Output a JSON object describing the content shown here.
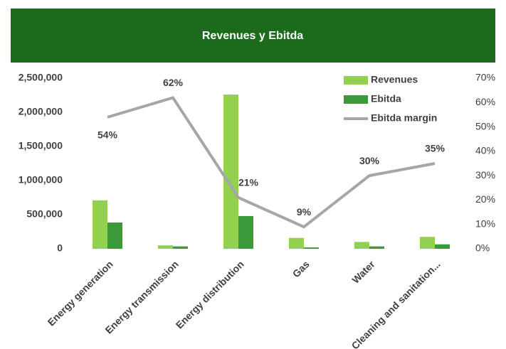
{
  "chart_data": {
    "type": "bar_line",
    "title": "Revenues y Ebitda",
    "categories": [
      "Energy generation",
      "Energy transmission",
      "Energy distribution",
      "Gas",
      "Water",
      "Cleaning and sanitation..."
    ],
    "series": [
      {
        "name": "Revenues",
        "color": "#92d050",
        "values": [
          710000,
          50000,
          2260000,
          160000,
          100000,
          175000
        ]
      },
      {
        "name": "Ebitda",
        "color": "#3a9a3a",
        "values": [
          385000,
          35000,
          480000,
          20000,
          35000,
          65000
        ]
      },
      {
        "name": "Ebitda margin",
        "color": "#a6a6a6",
        "axis": "y2",
        "values": [
          54,
          62,
          21,
          9,
          30,
          35
        ],
        "value_labels": [
          "54%",
          "62%",
          "21%",
          "9%",
          "30%",
          "35%"
        ]
      }
    ],
    "ylim": [
      0,
      2500000
    ],
    "yticks": [
      0,
      {
        "value": 500000,
        "label": "500,000"
      },
      {
        "value": 1000000,
        "label": "1,000,000"
      },
      {
        "value": 1500000,
        "label": "1,500,000"
      },
      {
        "value": 2000000,
        "label": "2,000,000"
      },
      {
        "value": 2500000,
        "label": "2,500,000"
      }
    ],
    "y2lim": [
      0,
      70
    ],
    "y2ticks": [
      {
        "value": 0,
        "label": "0%"
      },
      {
        "value": 10,
        "label": "10%"
      },
      {
        "value": 20,
        "label": "20%"
      },
      {
        "value": 30,
        "label": "30%"
      },
      {
        "value": 40,
        "label": "40%"
      },
      {
        "value": 50,
        "label": "50%"
      },
      {
        "value": 60,
        "label": "60%"
      },
      {
        "value": 70,
        "label": "70%"
      }
    ],
    "legend": "top-right",
    "grid": false
  }
}
